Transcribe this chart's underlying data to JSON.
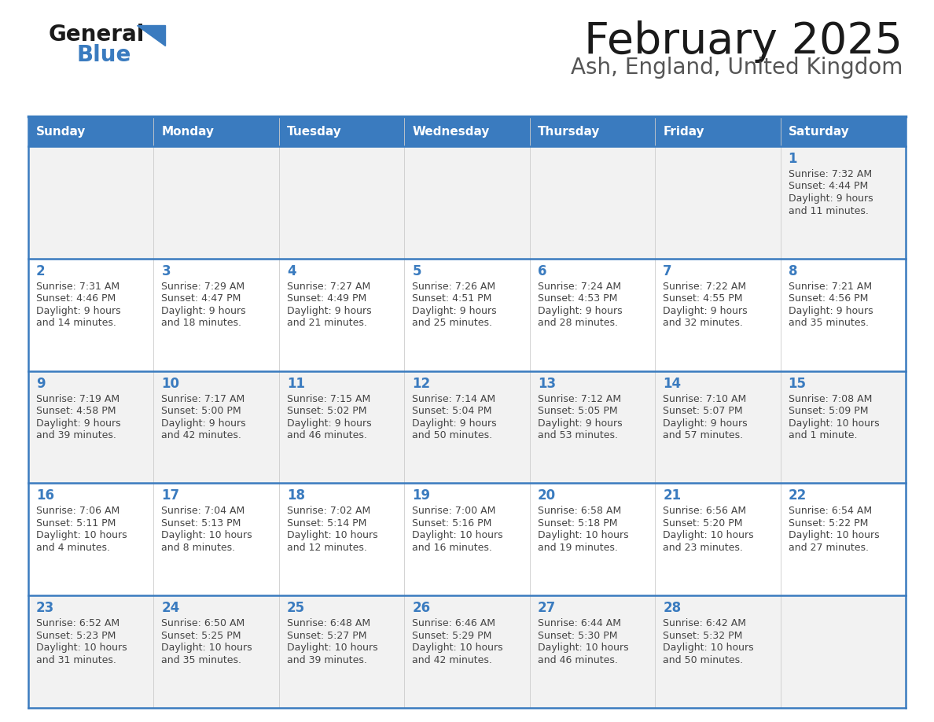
{
  "title": "February 2025",
  "subtitle": "Ash, England, United Kingdom",
  "header_bg": "#3A7BBF",
  "header_text": "#FFFFFF",
  "cell_bg_odd": "#F2F2F2",
  "cell_bg_even": "#FFFFFF",
  "day_number_color": "#3A7BBF",
  "text_color": "#444444",
  "border_color": "#3A7BBF",
  "days_of_week": [
    "Sunday",
    "Monday",
    "Tuesday",
    "Wednesday",
    "Thursday",
    "Friday",
    "Saturday"
  ],
  "calendar_data": [
    [
      null,
      null,
      null,
      null,
      null,
      null,
      {
        "day": "1",
        "sunrise": "7:32 AM",
        "sunset": "4:44 PM",
        "daylight": "9 hours",
        "daylight2": "and 11 minutes."
      }
    ],
    [
      {
        "day": "2",
        "sunrise": "7:31 AM",
        "sunset": "4:46 PM",
        "daylight": "9 hours",
        "daylight2": "and 14 minutes."
      },
      {
        "day": "3",
        "sunrise": "7:29 AM",
        "sunset": "4:47 PM",
        "daylight": "9 hours",
        "daylight2": "and 18 minutes."
      },
      {
        "day": "4",
        "sunrise": "7:27 AM",
        "sunset": "4:49 PM",
        "daylight": "9 hours",
        "daylight2": "and 21 minutes."
      },
      {
        "day": "5",
        "sunrise": "7:26 AM",
        "sunset": "4:51 PM",
        "daylight": "9 hours",
        "daylight2": "and 25 minutes."
      },
      {
        "day": "6",
        "sunrise": "7:24 AM",
        "sunset": "4:53 PM",
        "daylight": "9 hours",
        "daylight2": "and 28 minutes."
      },
      {
        "day": "7",
        "sunrise": "7:22 AM",
        "sunset": "4:55 PM",
        "daylight": "9 hours",
        "daylight2": "and 32 minutes."
      },
      {
        "day": "8",
        "sunrise": "7:21 AM",
        "sunset": "4:56 PM",
        "daylight": "9 hours",
        "daylight2": "and 35 minutes."
      }
    ],
    [
      {
        "day": "9",
        "sunrise": "7:19 AM",
        "sunset": "4:58 PM",
        "daylight": "9 hours",
        "daylight2": "and 39 minutes."
      },
      {
        "day": "10",
        "sunrise": "7:17 AM",
        "sunset": "5:00 PM",
        "daylight": "9 hours",
        "daylight2": "and 42 minutes."
      },
      {
        "day": "11",
        "sunrise": "7:15 AM",
        "sunset": "5:02 PM",
        "daylight": "9 hours",
        "daylight2": "and 46 minutes."
      },
      {
        "day": "12",
        "sunrise": "7:14 AM",
        "sunset": "5:04 PM",
        "daylight": "9 hours",
        "daylight2": "and 50 minutes."
      },
      {
        "day": "13",
        "sunrise": "7:12 AM",
        "sunset": "5:05 PM",
        "daylight": "9 hours",
        "daylight2": "and 53 minutes."
      },
      {
        "day": "14",
        "sunrise": "7:10 AM",
        "sunset": "5:07 PM",
        "daylight": "9 hours",
        "daylight2": "and 57 minutes."
      },
      {
        "day": "15",
        "sunrise": "7:08 AM",
        "sunset": "5:09 PM",
        "daylight": "10 hours",
        "daylight2": "and 1 minute."
      }
    ],
    [
      {
        "day": "16",
        "sunrise": "7:06 AM",
        "sunset": "5:11 PM",
        "daylight": "10 hours",
        "daylight2": "and 4 minutes."
      },
      {
        "day": "17",
        "sunrise": "7:04 AM",
        "sunset": "5:13 PM",
        "daylight": "10 hours",
        "daylight2": "and 8 minutes."
      },
      {
        "day": "18",
        "sunrise": "7:02 AM",
        "sunset": "5:14 PM",
        "daylight": "10 hours",
        "daylight2": "and 12 minutes."
      },
      {
        "day": "19",
        "sunrise": "7:00 AM",
        "sunset": "5:16 PM",
        "daylight": "10 hours",
        "daylight2": "and 16 minutes."
      },
      {
        "day": "20",
        "sunrise": "6:58 AM",
        "sunset": "5:18 PM",
        "daylight": "10 hours",
        "daylight2": "and 19 minutes."
      },
      {
        "day": "21",
        "sunrise": "6:56 AM",
        "sunset": "5:20 PM",
        "daylight": "10 hours",
        "daylight2": "and 23 minutes."
      },
      {
        "day": "22",
        "sunrise": "6:54 AM",
        "sunset": "5:22 PM",
        "daylight": "10 hours",
        "daylight2": "and 27 minutes."
      }
    ],
    [
      {
        "day": "23",
        "sunrise": "6:52 AM",
        "sunset": "5:23 PM",
        "daylight": "10 hours",
        "daylight2": "and 31 minutes."
      },
      {
        "day": "24",
        "sunrise": "6:50 AM",
        "sunset": "5:25 PM",
        "daylight": "10 hours",
        "daylight2": "and 35 minutes."
      },
      {
        "day": "25",
        "sunrise": "6:48 AM",
        "sunset": "5:27 PM",
        "daylight": "10 hours",
        "daylight2": "and 39 minutes."
      },
      {
        "day": "26",
        "sunrise": "6:46 AM",
        "sunset": "5:29 PM",
        "daylight": "10 hours",
        "daylight2": "and 42 minutes."
      },
      {
        "day": "27",
        "sunrise": "6:44 AM",
        "sunset": "5:30 PM",
        "daylight": "10 hours",
        "daylight2": "and 46 minutes."
      },
      {
        "day": "28",
        "sunrise": "6:42 AM",
        "sunset": "5:32 PM",
        "daylight": "10 hours",
        "daylight2": "and 50 minutes."
      },
      null
    ]
  ],
  "logo_general_color": "#1a1a1a",
  "logo_blue_color": "#3A7BBF",
  "figsize": [
    11.88,
    9.18
  ],
  "dpi": 100
}
